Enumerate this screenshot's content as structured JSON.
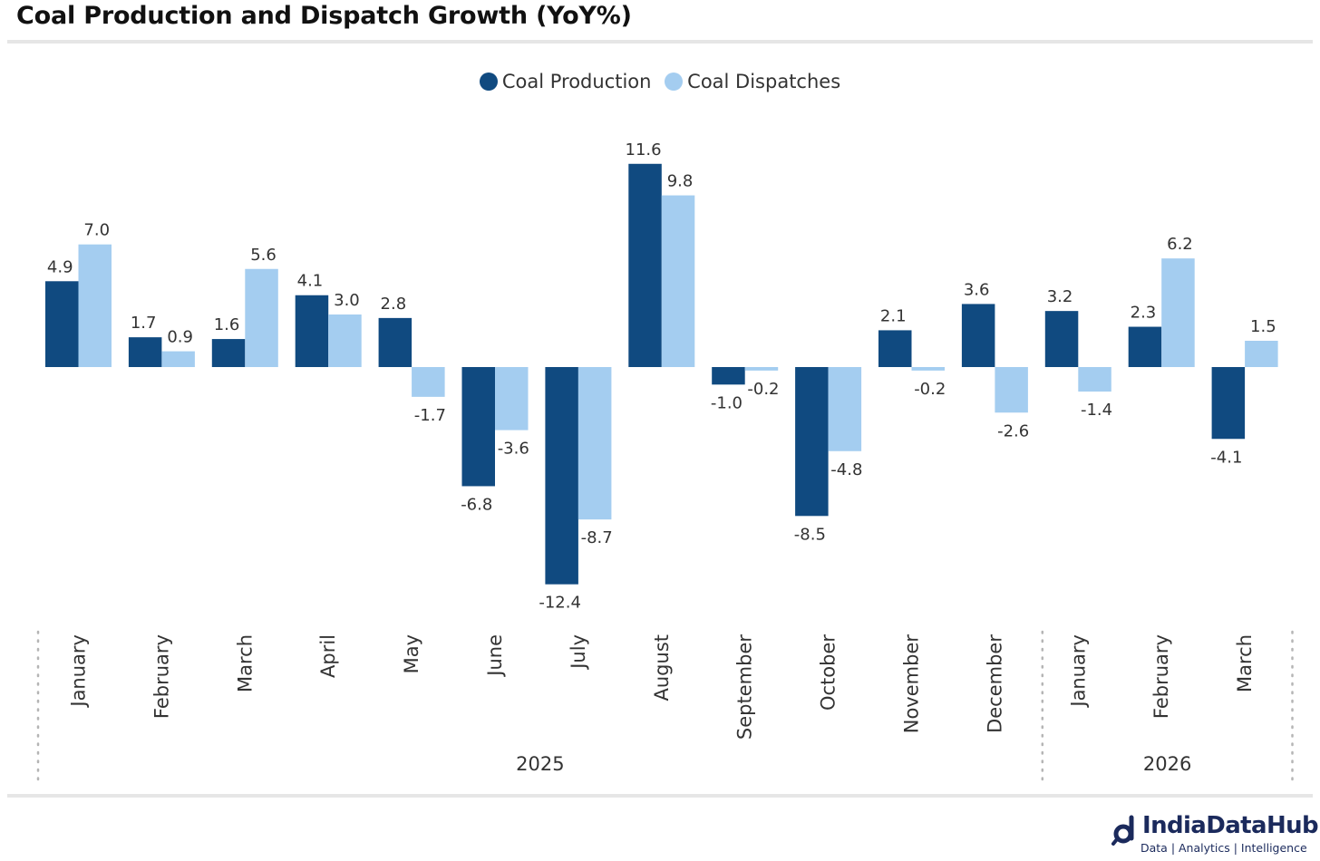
{
  "page": {
    "title": "Coal Production and Dispatch Growth (YoY%)"
  },
  "colors": {
    "production": "#104a80",
    "dispatches": "#a4cdf0"
  },
  "chart_data": {
    "type": "bar",
    "title": "Coal Production and Dispatch Growth (YoY%)",
    "xlabel": "",
    "ylabel": "",
    "legend_position": "top-center",
    "grid": false,
    "ylim": [
      -13,
      12
    ],
    "categories": [
      "January",
      "February",
      "March",
      "April",
      "May",
      "June",
      "July",
      "August",
      "September",
      "October",
      "November",
      "December",
      "January",
      "February",
      "March"
    ],
    "groups": [
      {
        "label": "2025",
        "count": 12
      },
      {
        "label": "2026",
        "count": 3
      }
    ],
    "series": [
      {
        "name": "Coal Production",
        "values": [
          4.9,
          1.7,
          1.6,
          4.1,
          2.8,
          -6.8,
          -12.4,
          11.6,
          -1.0,
          -8.5,
          2.1,
          3.6,
          3.2,
          2.3,
          -4.1
        ]
      },
      {
        "name": "Coal Dispatches",
        "values": [
          7.0,
          0.9,
          5.6,
          3.0,
          -1.7,
          -3.6,
          -8.7,
          9.8,
          -0.2,
          -4.8,
          -0.2,
          -2.6,
          -1.4,
          6.2,
          1.5
        ]
      }
    ]
  },
  "branding": {
    "name": "IndiaDataHub",
    "tagline": "Data | Analytics | Intelligence",
    "icon": "indiadatahub-logo-icon"
  }
}
